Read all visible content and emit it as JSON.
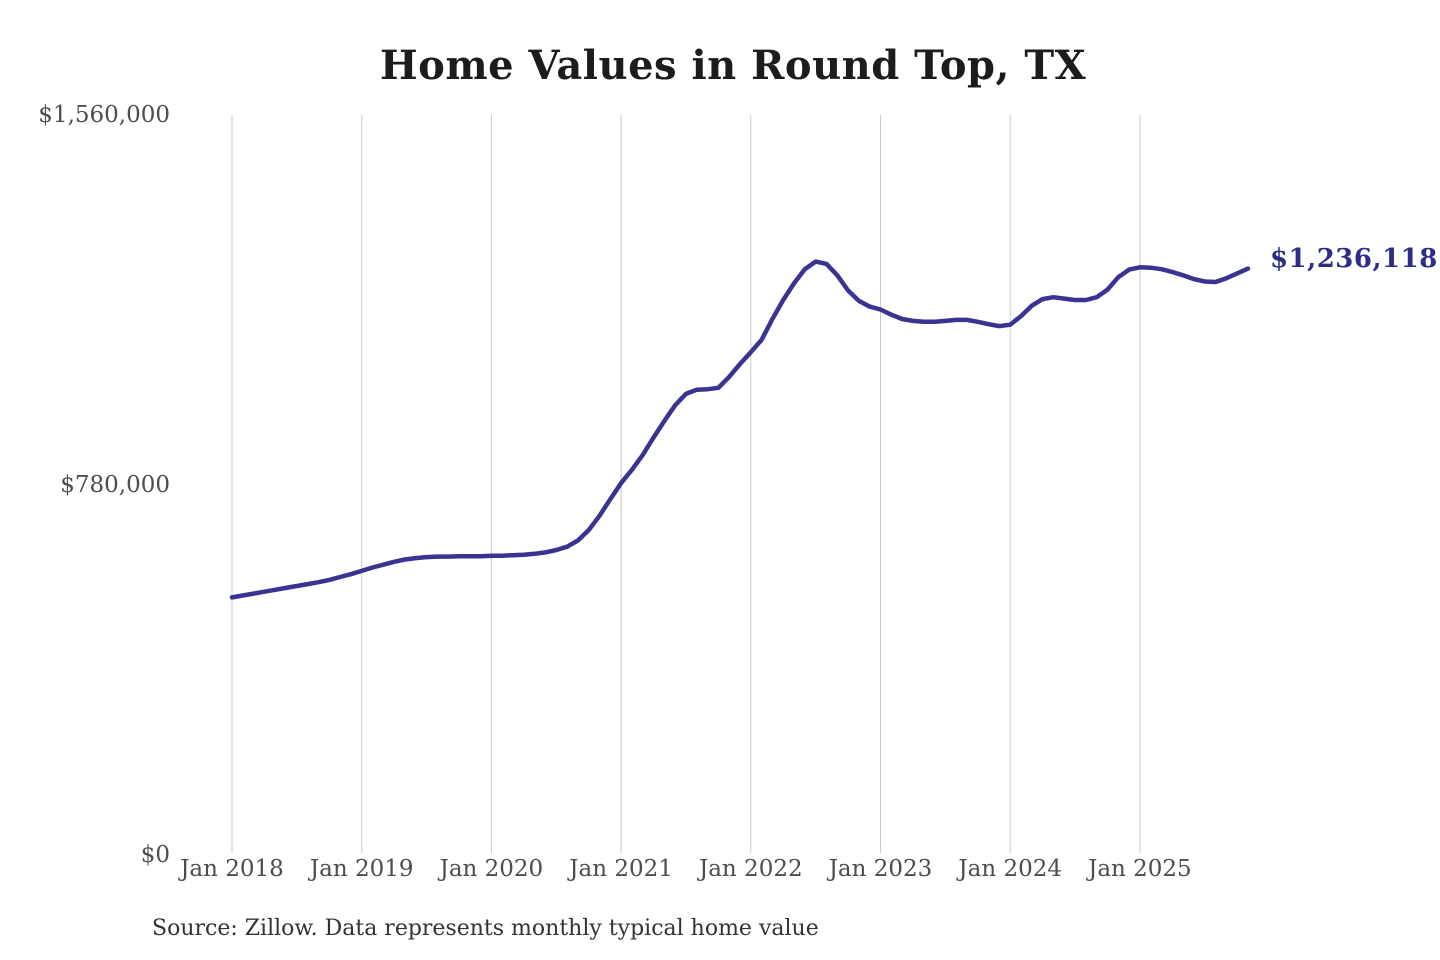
{
  "chart_data": {
    "type": "line",
    "title": "Home Values in Round Top, TX",
    "source_note": "Source: Zillow. Data represents monthly typical home value",
    "end_label": "$1,236,118",
    "xlabel": "",
    "ylabel": "",
    "ylim": [
      0,
      1560000
    ],
    "grid": "vertical-only",
    "legend": "none",
    "colors": {
      "line": "#3a3391",
      "end_label": "#2e2c87",
      "grid": "#c9c9c9",
      "axis_text": "#4d4d4d",
      "title": "#1c1c1c",
      "source_text": "#333333",
      "background": "#ffffff"
    },
    "y_ticks": [
      {
        "value": 1560000,
        "label": "$1,560,000"
      },
      {
        "value": 780000,
        "label": "$780,000"
      },
      {
        "value": 0,
        "label": "$0"
      }
    ],
    "x_tick_labels": [
      "Jan 2018",
      "Jan 2019",
      "Jan 2020",
      "Jan 2021",
      "Jan 2022",
      "Jan 2023",
      "Jan 2024",
      "Jan 2025"
    ],
    "series": [
      {
        "name": "Typical home value",
        "unit": "USD",
        "interval": "monthly",
        "start_month": "Jan 2018",
        "end_month": "Nov 2025",
        "final_value": 1236118,
        "values": [
          543000,
          547000,
          551000,
          555000,
          559000,
          563000,
          567000,
          571000,
          575000,
          580000,
          586000,
          592000,
          599000,
          606000,
          612000,
          618000,
          623000,
          626000,
          628000,
          629000,
          629000,
          630000,
          630000,
          630000,
          631000,
          631000,
          632000,
          633000,
          635000,
          638000,
          643000,
          650000,
          663000,
          685000,
          715000,
          750000,
          784000,
          812000,
          843000,
          880000,
          915000,
          948000,
          972000,
          981000,
          982000,
          985000,
          1008000,
          1035000,
          1060000,
          1086000,
          1130000,
          1170000,
          1205000,
          1235000,
          1251000,
          1246000,
          1222000,
          1190000,
          1168000,
          1156000,
          1150000,
          1139000,
          1130000,
          1126000,
          1124000,
          1124000,
          1126000,
          1128000,
          1128000,
          1124000,
          1119000,
          1115000,
          1118000,
          1136000,
          1158000,
          1172000,
          1176000,
          1173000,
          1170000,
          1170000,
          1176000,
          1192000,
          1218000,
          1234000,
          1239000,
          1238000,
          1235000,
          1229000,
          1222000,
          1214000,
          1209000,
          1208000,
          1216000,
          1226000,
          1236118
        ]
      }
    ]
  }
}
